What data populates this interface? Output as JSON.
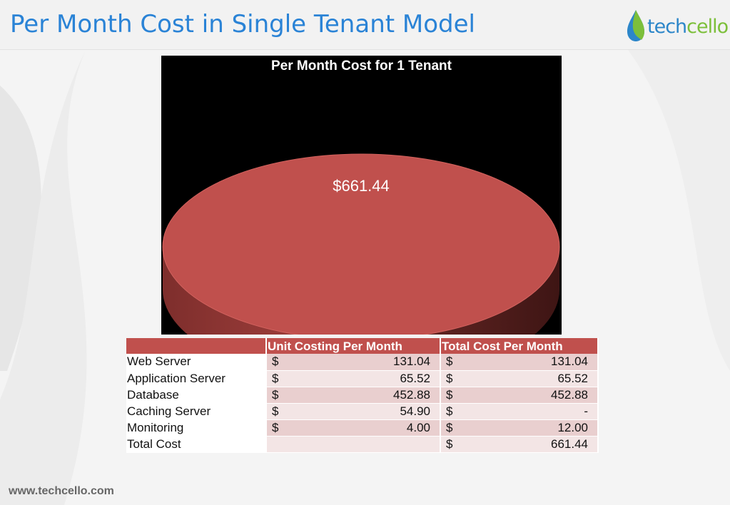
{
  "slide": {
    "title": "Per Month Cost in Single Tenant Model",
    "footer_url": "www.techcello.com",
    "logo": {
      "icon": "water-drop-icon",
      "text_part1": "tech",
      "text_part2": "cello",
      "colors": {
        "tech": "#2c86c9",
        "cello": "#7cbf3a"
      }
    }
  },
  "chart_data": {
    "type": "pie",
    "title": "Per Month Cost for 1 Tenant",
    "slices": [
      {
        "label": "$661.44",
        "value": 661.44,
        "color": "#c0504d"
      }
    ],
    "style": "3d",
    "background": "#000000",
    "legend": "none"
  },
  "table": {
    "headers": [
      "",
      "Unit Costing Per Month",
      "Total Cost Per Month"
    ],
    "rows": [
      {
        "label": "Web Server",
        "unit_symbol": "$",
        "unit": "131.04",
        "total_symbol": "$",
        "total": "131.04"
      },
      {
        "label": "Application Server",
        "unit_symbol": "$",
        "unit": "65.52",
        "total_symbol": "$",
        "total": "65.52"
      },
      {
        "label": "Database",
        "unit_symbol": "$",
        "unit": "452.88",
        "total_symbol": "$",
        "total": "452.88"
      },
      {
        "label": "Caching Server",
        "unit_symbol": "$",
        "unit": "54.90",
        "total_symbol": "$",
        "total": "-"
      },
      {
        "label": "Monitoring",
        "unit_symbol": "$",
        "unit": "4.00",
        "total_symbol": "$",
        "total": "12.00"
      },
      {
        "label": "Total Cost",
        "unit_symbol": "",
        "unit": "",
        "total_symbol": "$",
        "total": "661.44"
      }
    ]
  }
}
